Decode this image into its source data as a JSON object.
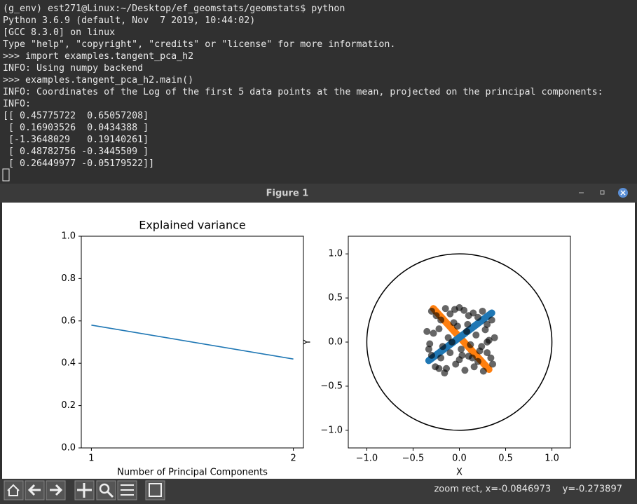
{
  "terminal": {
    "lines": [
      "(g_env) est271@Linux:~/Desktop/ef_geomstats/geomstats$ python",
      "Python 3.6.9 (default, Nov  7 2019, 10:44:02)",
      "[GCC 8.3.0] on linux",
      "Type \"help\", \"copyright\", \"credits\" or \"license\" for more information.",
      ">>> import examples.tangent_pca_h2",
      "INFO: Using numpy backend",
      ">>> examples.tangent_pca_h2.main()",
      "INFO: Coordinates of the Log of the first 5 data points at the mean, projected on the principal components:",
      "INFO:",
      "[[ 0.45775722  0.65057208]",
      " [ 0.16903526  0.0434388 ]",
      " [-1.3648029   0.19140261]",
      " [ 0.48782756 -0.3445509 ]",
      " [ 0.26449977 -0.05179522]]"
    ]
  },
  "window": {
    "title": "Figure 1"
  },
  "chart_data": [
    {
      "type": "line",
      "title": "Explained variance",
      "x_label": "Number of Principal Components",
      "x": [
        1,
        2
      ],
      "values": [
        0.58,
        0.42
      ],
      "color": "#1f77b4",
      "xlim": [
        0.95,
        2.05
      ],
      "xticks": [
        1,
        2
      ],
      "ylim": [
        0,
        1
      ],
      "yticks": [
        {
          "value": 0,
          "label": "0.0"
        },
        {
          "value": 0.2,
          "label": "0.2"
        },
        {
          "value": 0.4,
          "label": "0.4"
        },
        {
          "value": 0.6,
          "label": "0.6"
        },
        {
          "value": 0.8,
          "label": "0.8"
        },
        {
          "value": 1,
          "label": "1.0"
        }
      ]
    },
    {
      "type": "scatter",
      "x_label": "X",
      "y_label": "Y",
      "xlim": [
        -1.2,
        1.2
      ],
      "ylim": [
        -1.2,
        1.2
      ],
      "xticks": [
        {
          "value": -1,
          "label": "−1.0"
        },
        {
          "value": -0.5,
          "label": "−0.5"
        },
        {
          "value": 0,
          "label": "0.0"
        },
        {
          "value": 0.5,
          "label": "0.5"
        },
        {
          "value": 1,
          "label": "1.0"
        }
      ],
      "yticks": [
        {
          "value": -1,
          "label": "−1.0"
        },
        {
          "value": -0.5,
          "label": "−0.5"
        },
        {
          "value": 0,
          "label": "0.0"
        },
        {
          "value": 0.5,
          "label": "0.5"
        },
        {
          "value": 1,
          "label": "1.0"
        }
      ],
      "boundary_radius": 1,
      "lines": [
        {
          "color": "#ff7f0e",
          "x": [
            -0.28,
            0.32
          ],
          "y": [
            0.38,
            -0.31
          ]
        },
        {
          "color": "#1f77b4",
          "x": [
            -0.33,
            0.35
          ],
          "y": [
            -0.21,
            0.33
          ]
        }
      ],
      "points": {
        "color": "#000000",
        "alpha": 0.6,
        "x": [
          -0.3,
          -0.25,
          -0.2,
          -0.15,
          -0.1,
          -0.05,
          0.0,
          0.05,
          0.1,
          0.15,
          0.2,
          0.25,
          0.3,
          0.35,
          -0.35,
          -0.28,
          -0.22,
          -0.12,
          -0.02,
          0.08,
          0.18,
          0.28,
          0.38,
          -0.32,
          -0.18,
          -0.08,
          0.02,
          0.12,
          0.22,
          0.32,
          -0.3,
          -0.2,
          -0.1,
          0.0,
          0.1,
          0.2,
          0.3,
          -0.26,
          -0.14,
          -0.04,
          0.06,
          0.16,
          0.26,
          0.36,
          -0.33,
          -0.22,
          0.03,
          0.14,
          0.24,
          0.34,
          -0.06,
          0.09,
          -0.16,
          0.3
        ],
        "y": [
          0.35,
          0.3,
          0.25,
          0.38,
          0.32,
          0.37,
          0.39,
          0.36,
          0.3,
          0.33,
          0.28,
          0.35,
          0.2,
          0.25,
          0.12,
          0.1,
          0.15,
          0.05,
          0.18,
          0.12,
          0.08,
          0.14,
          0.05,
          -0.02,
          -0.05,
          0.0,
          -0.08,
          -0.03,
          -0.1,
          0.02,
          -0.15,
          -0.18,
          -0.12,
          -0.2,
          -0.16,
          -0.22,
          -0.12,
          -0.28,
          -0.3,
          -0.25,
          -0.32,
          -0.28,
          -0.33,
          -0.25,
          -0.08,
          -0.3,
          -0.15,
          -0.18,
          -0.05,
          -0.18,
          0.22,
          0.2,
          -0.35,
          0.0
        ]
      }
    }
  ],
  "toolbar": {
    "status": "zoom rect, x=-0.0846973    y=-0.273897"
  }
}
